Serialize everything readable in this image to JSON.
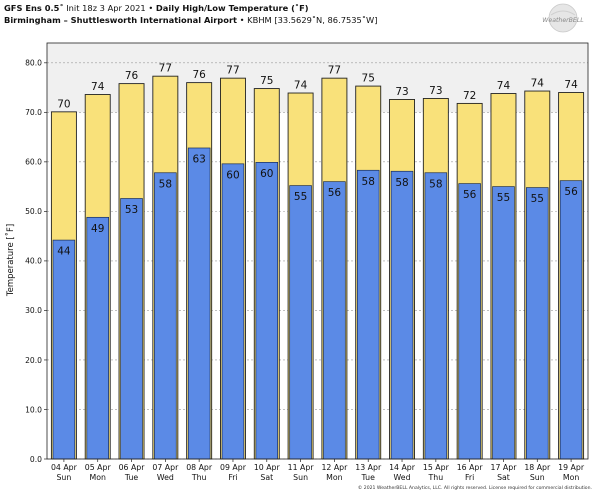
{
  "header": {
    "model": "GFS Ens 0.5˚",
    "init": " Init 18z 3 Apr 2021",
    "sep": " • ",
    "product": "Daily High/Low Temperature (˚F)",
    "station_name": "Birmingham – Shuttlesworth International Airport",
    "station_info": " • KBHM [33.5629˚N, 86.7535˚W]"
  },
  "logo": {
    "text": "WeatherBELL"
  },
  "footer": {
    "copyright": "© 2021 WeatherBELL Analytics, LLC. All rights reserved. License required for commercial distribution."
  },
  "colors": {
    "high": "#f9e17a",
    "low": "#5b8ae6",
    "outline": "#222222",
    "band": "#f0f0f0"
  },
  "chart_data": {
    "type": "bar",
    "ylabel": "Temperature [˚F]",
    "ylim": [
      0,
      84
    ],
    "yticks": [
      0,
      10,
      20,
      30,
      40,
      50,
      60,
      70,
      80
    ],
    "grid": true,
    "categories": [
      [
        "04 Apr",
        "Sun"
      ],
      [
        "05 Apr",
        "Mon"
      ],
      [
        "06 Apr",
        "Tue"
      ],
      [
        "07 Apr",
        "Wed"
      ],
      [
        "08 Apr",
        "Thu"
      ],
      [
        "09 Apr",
        "Fri"
      ],
      [
        "10 Apr",
        "Sat"
      ],
      [
        "11 Apr",
        "Sun"
      ],
      [
        "12 Apr",
        "Mon"
      ],
      [
        "13 Apr",
        "Tue"
      ],
      [
        "14 Apr",
        "Wed"
      ],
      [
        "15 Apr",
        "Thu"
      ],
      [
        "16 Apr",
        "Fri"
      ],
      [
        "17 Apr",
        "Sat"
      ],
      [
        "18 Apr",
        "Sun"
      ],
      [
        "19 Apr",
        "Mon"
      ]
    ],
    "series": [
      {
        "name": "High",
        "values": [
          70,
          74,
          76,
          77,
          76,
          77,
          75,
          74,
          77,
          75,
          73,
          73,
          72,
          74,
          74,
          74
        ],
        "bar_tops": [
          70.1,
          73.6,
          75.8,
          77.3,
          76.0,
          76.9,
          74.8,
          73.9,
          76.9,
          75.3,
          72.6,
          72.8,
          71.8,
          73.8,
          74.3,
          74.0
        ]
      },
      {
        "name": "Low",
        "values": [
          44,
          49,
          53,
          58,
          63,
          60,
          60,
          55,
          56,
          58,
          58,
          58,
          56,
          55,
          55,
          56
        ],
        "bar_tops": [
          44.2,
          48.8,
          52.6,
          57.8,
          62.8,
          59.6,
          59.9,
          55.2,
          56.0,
          58.3,
          58.1,
          57.8,
          55.6,
          55.0,
          54.8,
          56.2
        ]
      }
    ]
  }
}
